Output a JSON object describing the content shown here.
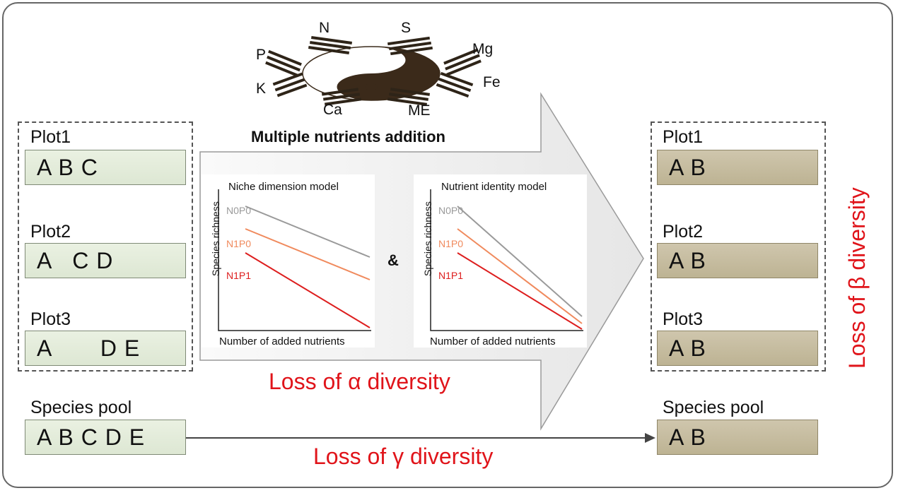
{
  "before": {
    "plots": [
      {
        "label": "Plot1",
        "species": "A B C"
      },
      {
        "label": "Plot2",
        "species": "A   C D"
      },
      {
        "label": "Plot3",
        "species": "A       D E"
      }
    ],
    "pool": {
      "label": "Species pool",
      "species": "A B C D E"
    }
  },
  "after": {
    "plots": [
      {
        "label": "Plot1",
        "species": "A B"
      },
      {
        "label": "Plot2",
        "species": "A B"
      },
      {
        "label": "Plot3",
        "species": "A B"
      }
    ],
    "pool": {
      "label": "Species pool",
      "species": "A B"
    }
  },
  "treatment": {
    "title": "Multiple nutrients addition",
    "nutrients": {
      "n": "N",
      "s": "S",
      "p": "P",
      "mg": "Mg",
      "k": "K",
      "fe": "Fe",
      "ca": "Ca",
      "me": "ME"
    }
  },
  "models": {
    "niche": {
      "title": "Niche dimension model",
      "ylabel": "Species richness",
      "xlabel": "Number of added nutrients",
      "lines": [
        {
          "name": "N0P0",
          "color": "#9a9a9a",
          "start": 0.88,
          "end": 0.52
        },
        {
          "name": "N1P0",
          "color": "#f08a5d",
          "start": 0.72,
          "end": 0.36
        },
        {
          "name": "N1P1",
          "color": "#dd1e1e",
          "start": 0.55,
          "end": 0.02
        }
      ]
    },
    "identity": {
      "title": "Nutrient identity model",
      "ylabel": "Species richness",
      "xlabel": "Number of added nutrients",
      "lines": [
        {
          "name": "N0P0",
          "color": "#9a9a9a",
          "start": 0.88,
          "end": 0.1
        },
        {
          "name": "N1P0",
          "color": "#f08a5d",
          "start": 0.72,
          "end": 0.05
        },
        {
          "name": "N1P1",
          "color": "#dd1e1e",
          "start": 0.55,
          "end": 0.01
        }
      ]
    },
    "connector": "&"
  },
  "labels": {
    "alpha": "Loss of α diversity",
    "beta": "Loss of β diversity",
    "gamma": "Loss of γ diversity"
  },
  "colors": {
    "accent": "#e0141a",
    "arrow_fill": "#f2f2f2",
    "before_box": "#e3ebd9",
    "after_box": "#c6bca0"
  }
}
